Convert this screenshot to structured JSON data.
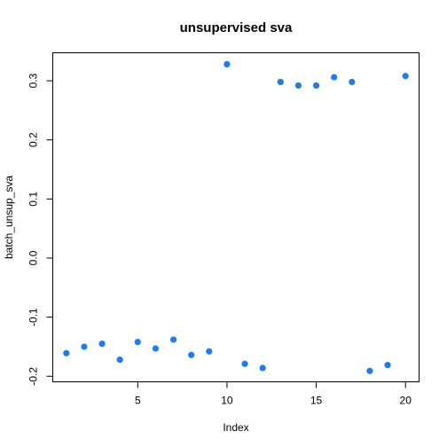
{
  "chart_data": {
    "type": "scatter",
    "title": "unsupervised sva",
    "xlabel": "Index",
    "ylabel": "batch_unsup_sva",
    "xlim": [
      0.24,
      20.76
    ],
    "ylim": [
      -0.2094,
      0.3474
    ],
    "xticks": [
      5,
      10,
      15,
      20
    ],
    "xtick_labels": [
      "5",
      "10",
      "15",
      "20"
    ],
    "yticks": [
      -0.2,
      -0.1,
      0.0,
      0.1,
      0.2,
      0.3
    ],
    "ytick_labels": [
      "-0.2",
      "-0.1",
      "0.0",
      "0.1",
      "0.2",
      "0.3"
    ],
    "grid": false,
    "point_color": "#1E7BF0",
    "x": [
      1,
      2,
      3,
      4,
      5,
      6,
      7,
      8,
      9,
      10,
      11,
      12,
      13,
      14,
      15,
      16,
      17,
      18,
      19,
      20
    ],
    "y": [
      -0.161,
      -0.15,
      -0.145,
      -0.172,
      -0.142,
      -0.153,
      -0.138,
      -0.164,
      -0.158,
      0.328,
      -0.179,
      -0.186,
      0.298,
      0.292,
      0.292,
      0.306,
      0.298,
      -0.191,
      -0.181,
      0.308
    ]
  }
}
